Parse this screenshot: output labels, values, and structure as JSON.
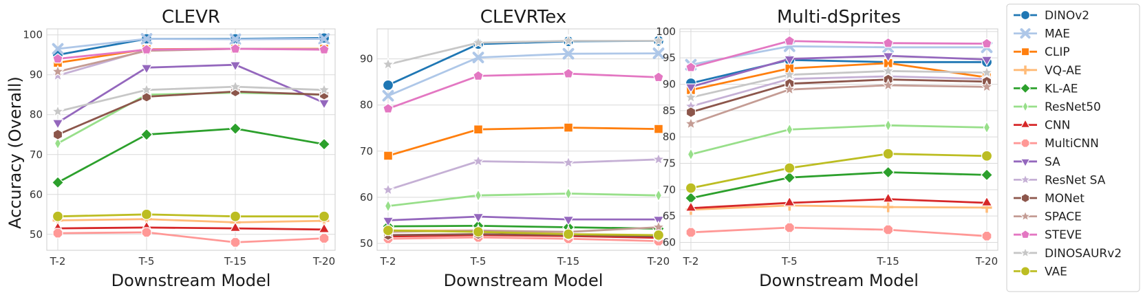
{
  "figure": {
    "ylabel": "Accuracy (Overall)"
  },
  "chart_data": [
    {
      "type": "line",
      "title": "CLEVR",
      "xlabel": "Downstream Model",
      "ylabel": "Accuracy (Overall)",
      "x": [
        "T-2",
        "T-5",
        "T-15",
        "T-20"
      ],
      "ylim": [
        46,
        101.5
      ],
      "yticks": [
        50,
        60,
        70,
        80,
        90,
        100
      ],
      "grid": true,
      "series": [
        {
          "name": "DINOv2",
          "values": [
            95.0,
            99.0,
            99.0,
            99.2
          ]
        },
        {
          "name": "MAE",
          "values": [
            96.5,
            99.0,
            98.9,
            99.0
          ]
        },
        {
          "name": "CLIP",
          "values": [
            93.0,
            96.4,
            96.5,
            96.5
          ]
        },
        {
          "name": "VQ-AE",
          "values": [
            53.5,
            53.8,
            53.0,
            53.4
          ]
        },
        {
          "name": "KL-AE",
          "values": [
            63.0,
            75.0,
            76.5,
            72.6
          ]
        },
        {
          "name": "ResNet50",
          "values": [
            72.8,
            85.0,
            85.5,
            85.0
          ]
        },
        {
          "name": "CNN",
          "values": [
            51.5,
            51.7,
            51.5,
            51.2
          ]
        },
        {
          "name": "MultiCNN",
          "values": [
            50.3,
            50.5,
            48.0,
            49.0
          ]
        },
        {
          "name": "SA",
          "values": [
            78.0,
            91.8,
            92.5,
            83.0
          ]
        },
        {
          "name": "ResNet SA",
          "values": [
            89.8,
            96.2,
            96.5,
            96.4
          ]
        },
        {
          "name": "MONet",
          "values": [
            75.0,
            84.5,
            85.8,
            85.0
          ]
        },
        {
          "name": "SPACE",
          "values": [
            90.8,
            96.0,
            96.5,
            96.4
          ]
        },
        {
          "name": "STEVE",
          "values": [
            94.0,
            96.3,
            96.5,
            96.3
          ]
        },
        {
          "name": "DINOSAURv2",
          "values": [
            80.8,
            86.2,
            87.0,
            86.2
          ]
        },
        {
          "name": "VAE",
          "values": [
            54.5,
            55.0,
            54.5,
            54.5
          ]
        }
      ]
    },
    {
      "type": "line",
      "title": "CLEVRTex",
      "xlabel": "Downstream Model",
      "ylabel": "",
      "x": [
        "T-2",
        "T-5",
        "T-15",
        "T-20"
      ],
      "ylim": [
        48.5,
        96.5
      ],
      "yticks": [
        50,
        60,
        70,
        80,
        90
      ],
      "grid": true,
      "series": [
        {
          "name": "DINOv2",
          "values": [
            84.3,
            93.2,
            93.8,
            93.9
          ]
        },
        {
          "name": "MAE",
          "values": [
            82.0,
            90.3,
            91.1,
            91.2
          ]
        },
        {
          "name": "CLIP",
          "values": [
            69.0,
            74.7,
            75.1,
            74.8
          ]
        },
        {
          "name": "VQ-AE",
          "values": [
            52.8,
            52.8,
            52.0,
            51.5
          ]
        },
        {
          "name": "KL-AE",
          "values": [
            53.7,
            53.8,
            53.5,
            53.2
          ]
        },
        {
          "name": "ResNet50",
          "values": [
            58.1,
            60.4,
            60.8,
            60.4
          ]
        },
        {
          "name": "CNN",
          "values": [
            51.5,
            51.8,
            51.6,
            51.2
          ]
        },
        {
          "name": "MultiCNN",
          "values": [
            51.0,
            51.3,
            51.0,
            50.5
          ]
        },
        {
          "name": "SA",
          "values": [
            55.0,
            55.8,
            55.2,
            55.2
          ]
        },
        {
          "name": "ResNet SA",
          "values": [
            61.6,
            67.8,
            67.5,
            68.2
          ]
        },
        {
          "name": "MONet",
          "values": [
            51.8,
            52.0,
            51.8,
            51.5
          ]
        },
        {
          "name": "SPACE",
          "values": [
            52.5,
            52.8,
            52.5,
            53.5
          ]
        },
        {
          "name": "STEVE",
          "values": [
            79.2,
            86.3,
            86.8,
            86.0
          ]
        },
        {
          "name": "DINOSAURv2",
          "values": [
            88.8,
            93.5,
            93.9,
            93.9
          ]
        },
        {
          "name": "VAE",
          "values": [
            52.8,
            52.5,
            52.0,
            51.8
          ]
        }
      ]
    },
    {
      "type": "line",
      "title": "Multi-dSprites",
      "xlabel": "Downstream Model",
      "ylabel": "",
      "x": [
        "T-2",
        "T-5",
        "T-15",
        "T-20"
      ],
      "ylim": [
        58.5,
        100.5
      ],
      "yticks": [
        60,
        65,
        70,
        75,
        80,
        85,
        90,
        95,
        100
      ],
      "grid": true,
      "series": [
        {
          "name": "DINOv2",
          "values": [
            90.2,
            94.6,
            94.2,
            94.2
          ]
        },
        {
          "name": "MAE",
          "values": [
            93.7,
            97.2,
            97.0,
            97.0
          ]
        },
        {
          "name": "CLIP",
          "values": [
            88.9,
            93.0,
            94.0,
            91.3
          ]
        },
        {
          "name": "VQ-AE",
          "values": [
            66.2,
            67.0,
            66.7,
            66.6
          ]
        },
        {
          "name": "KL-AE",
          "values": [
            68.4,
            72.3,
            73.3,
            72.8
          ]
        },
        {
          "name": "ResNet50",
          "values": [
            76.7,
            81.4,
            82.2,
            81.8
          ]
        },
        {
          "name": "CNN",
          "values": [
            66.5,
            67.5,
            68.2,
            67.5
          ]
        },
        {
          "name": "MultiCNN",
          "values": [
            61.9,
            62.8,
            62.4,
            61.2
          ]
        },
        {
          "name": "SA",
          "values": [
            89.5,
            94.8,
            95.4,
            94.7
          ]
        },
        {
          "name": "ResNet SA",
          "values": [
            85.8,
            91.0,
            91.5,
            91.0
          ]
        },
        {
          "name": "MONet",
          "values": [
            84.7,
            90.1,
            90.9,
            90.5
          ]
        },
        {
          "name": "SPACE",
          "values": [
            82.5,
            89.0,
            89.8,
            89.5
          ]
        },
        {
          "name": "STEVE",
          "values": [
            93.2,
            98.2,
            97.8,
            97.7
          ]
        },
        {
          "name": "DINOSAURv2",
          "values": [
            87.5,
            91.8,
            92.5,
            92.2
          ]
        },
        {
          "name": "VAE",
          "values": [
            70.3,
            74.1,
            76.8,
            76.4
          ]
        }
      ]
    }
  ],
  "legend": {
    "placement": "right",
    "items": [
      {
        "name": "DINOv2",
        "color": "#1f77b4",
        "marker": "circle"
      },
      {
        "name": "MAE",
        "color": "#aec7e8",
        "marker": "x"
      },
      {
        "name": "CLIP",
        "color": "#ff7f0e",
        "marker": "square"
      },
      {
        "name": "VQ-AE",
        "color": "#ffbb78",
        "marker": "plus"
      },
      {
        "name": "KL-AE",
        "color": "#2ca02c",
        "marker": "diamond"
      },
      {
        "name": "ResNet50",
        "color": "#98df8a",
        "marker": "thin-diamond"
      },
      {
        "name": "CNN",
        "color": "#d62728",
        "marker": "triangle-up"
      },
      {
        "name": "MultiCNN",
        "color": "#ff9896",
        "marker": "octagon"
      },
      {
        "name": "SA",
        "color": "#9467bd",
        "marker": "triangle-down"
      },
      {
        "name": "ResNet SA",
        "color": "#c5b0d5",
        "marker": "star"
      },
      {
        "name": "MONet",
        "color": "#8c564b",
        "marker": "hexagon"
      },
      {
        "name": "SPACE",
        "color": "#c49c94",
        "marker": "star"
      },
      {
        "name": "STEVE",
        "color": "#e377c2",
        "marker": "pentagon"
      },
      {
        "name": "DINOSAURv2",
        "color": "#c7c7c7",
        "marker": "star"
      },
      {
        "name": "VAE",
        "color": "#bcbd22",
        "marker": "circle"
      }
    ]
  }
}
